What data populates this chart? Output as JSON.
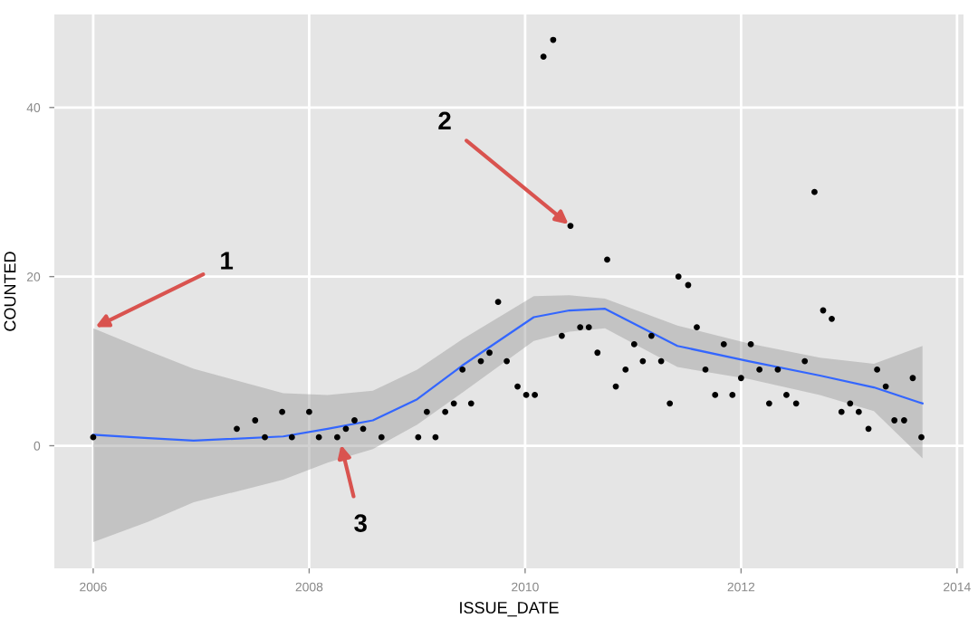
{
  "chart_data": {
    "type": "scatter",
    "xlabel": "ISSUE_DATE",
    "ylabel": "COUNTED",
    "xlim": [
      2005.64,
      2014.06
    ],
    "ylim": [
      -14.5,
      51
    ],
    "xticks": [
      2006,
      2008,
      2010,
      2012,
      2014
    ],
    "yticks": [
      0,
      20,
      40
    ],
    "grid": true,
    "marker": "circle",
    "series": [
      {
        "color": "#000000",
        "x": [
          2006.0,
          2007.33,
          2007.5,
          2007.59,
          2007.75,
          2007.84,
          2008.0,
          2008.09,
          2008.26,
          2008.34,
          2008.42,
          2008.5,
          2008.67,
          2009.01,
          2009.09,
          2009.17,
          2009.26,
          2009.34,
          2009.42,
          2009.5,
          2009.59,
          2009.67,
          2009.75,
          2009.83,
          2009.93,
          2010.01,
          2010.09,
          2010.17,
          2010.26,
          2010.34,
          2010.42,
          2010.51,
          2010.59,
          2010.67,
          2010.76,
          2010.84,
          2010.93,
          2011.01,
          2011.09,
          2011.17,
          2011.26,
          2011.34,
          2011.42,
          2011.51,
          2011.59,
          2011.67,
          2011.76,
          2011.84,
          2011.92,
          2012.0,
          2012.09,
          2012.17,
          2012.26,
          2012.34,
          2012.42,
          2012.51,
          2012.59,
          2012.68,
          2012.76,
          2012.84,
          2012.93,
          2013.01,
          2013.09,
          2013.18,
          2013.26,
          2013.34,
          2013.42,
          2013.51,
          2013.59,
          2013.67
        ],
        "values": [
          1,
          2,
          3,
          1,
          4,
          1,
          4,
          1,
          1,
          2,
          3,
          2,
          1,
          1,
          4,
          1,
          4,
          5,
          9,
          5,
          10,
          11,
          17,
          10,
          7,
          6,
          6,
          46,
          48,
          13,
          26,
          14,
          14,
          11,
          22,
          7,
          9,
          12,
          10,
          13,
          10,
          5,
          20,
          19,
          14,
          9,
          6,
          12,
          6,
          8,
          12,
          9,
          5,
          9,
          6,
          5,
          10,
          30,
          16,
          15,
          4,
          5,
          4,
          2,
          9,
          7,
          3,
          3,
          8,
          1
        ]
      },
      {
        "type": "line",
        "marker": "none",
        "color": "#3366ff",
        "x": [
          2006.0,
          2006.51,
          2006.93,
          2007.76,
          2008.17,
          2008.59,
          2009.0,
          2009.42,
          2010.08,
          2010.41,
          2010.74,
          2011.41,
          2012.07,
          2012.73,
          2013.23,
          2013.68
        ],
        "values": [
          1.3,
          0.9,
          0.6,
          1.1,
          2.0,
          3.0,
          5.5,
          9.5,
          15.2,
          16.0,
          16.2,
          11.8,
          10.0,
          8.3,
          6.9,
          5.0
        ],
        "lower": [
          -11.4,
          -9.0,
          -6.7,
          -4.0,
          -2.0,
          -0.4,
          2.5,
          6.3,
          12.4,
          13.5,
          13.9,
          9.3,
          7.9,
          6.0,
          4.1,
          -1.5
        ],
        "upper": [
          13.9,
          11.2,
          9.1,
          6.2,
          6.0,
          6.5,
          9.0,
          12.6,
          17.7,
          17.8,
          17.4,
          14.2,
          12.1,
          10.4,
          9.7,
          11.8
        ]
      }
    ],
    "annotations": [
      {
        "text": "1",
        "x": 2006.0,
        "y": 13.9
      },
      {
        "text": "2",
        "x": 2010.42,
        "y": 26
      },
      {
        "text": "3",
        "x": 2008.29,
        "y": 0.4
      }
    ]
  }
}
